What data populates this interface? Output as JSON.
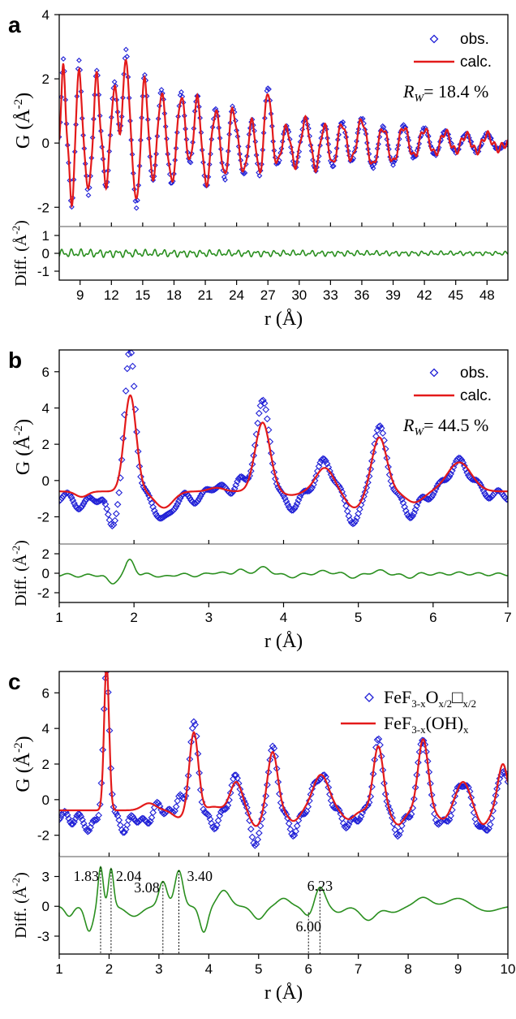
{
  "chart_data": [
    {
      "type": "line",
      "panel_label": "a",
      "xlabel_base": "r (Å)",
      "ylabel_main": "G (Å⁻²)",
      "ylabel_main_parts": {
        "prefix": "G (Å",
        "sup": "-2",
        "suffix": ")"
      },
      "ylabel_diff_parts": {
        "prefix": "Diff. (Å",
        "sup": "-2",
        "suffix": ")"
      },
      "xlim": [
        7,
        50
      ],
      "xticks": [
        9,
        12,
        15,
        18,
        21,
        24,
        27,
        30,
        33,
        36,
        39,
        42,
        45,
        48
      ],
      "ylim_main": [
        -2.6,
        4
      ],
      "yticks_main": [
        -2,
        0,
        2,
        4
      ],
      "ylim_diff": [
        -1.5,
        1.5
      ],
      "yticks_diff": [
        -1,
        0,
        1
      ],
      "series": [
        {
          "name": "obs.",
          "marker": "diamond",
          "color": "#1f1fd6"
        },
        {
          "name": "calc.",
          "marker": "line",
          "color": "#e31a1a"
        }
      ],
      "diff_color": "#2a8f1f",
      "rw_label": {
        "symbol": "R",
        "sub": "W",
        "text": "= 18.4 %"
      },
      "peaks": [
        [
          7.4,
          2.6,
          0.18
        ],
        [
          8.2,
          -2.0,
          0.2
        ],
        [
          8.9,
          2.6,
          0.2
        ],
        [
          9.8,
          -1.6,
          0.22
        ],
        [
          10.6,
          2.3,
          0.22
        ],
        [
          11.5,
          -1.4,
          0.22
        ],
        [
          12.3,
          1.9,
          0.25
        ],
        [
          13.4,
          2.9,
          0.25
        ],
        [
          14.4,
          -2.0,
          0.25
        ],
        [
          15.2,
          2.2,
          0.25
        ],
        [
          16.0,
          -1.2,
          0.3
        ],
        [
          16.8,
          1.7,
          0.3
        ],
        [
          17.8,
          -1.3,
          0.3
        ],
        [
          18.7,
          1.6,
          0.3
        ],
        [
          19.6,
          -0.8,
          0.3
        ],
        [
          20.2,
          1.6,
          0.3
        ],
        [
          21.1,
          -1.4,
          0.3
        ],
        [
          22.0,
          1.1,
          0.3
        ],
        [
          22.9,
          -1.2,
          0.3
        ],
        [
          23.6,
          1.2,
          0.3
        ],
        [
          24.7,
          -1.0,
          0.3
        ],
        [
          25.5,
          0.8,
          0.3
        ],
        [
          26.2,
          -1.1,
          0.3
        ],
        [
          27.0,
          1.8,
          0.3
        ],
        [
          27.9,
          -0.7,
          0.35
        ],
        [
          28.8,
          0.6,
          0.35
        ],
        [
          29.6,
          -0.8,
          0.35
        ],
        [
          30.6,
          0.8,
          0.35
        ],
        [
          31.6,
          -0.9,
          0.35
        ],
        [
          32.4,
          0.7,
          0.35
        ],
        [
          33.2,
          -0.8,
          0.35
        ],
        [
          34.1,
          0.7,
          0.35
        ],
        [
          35.0,
          -0.6,
          0.35
        ],
        [
          36.0,
          0.8,
          0.35
        ],
        [
          37.1,
          -0.8,
          0.4
        ],
        [
          38.0,
          0.6,
          0.4
        ],
        [
          39.0,
          -0.7,
          0.4
        ],
        [
          40.0,
          0.6,
          0.4
        ],
        [
          41.0,
          -0.5,
          0.4
        ],
        [
          42.0,
          0.5,
          0.4
        ],
        [
          43.0,
          -0.4,
          0.4
        ],
        [
          44.0,
          0.4,
          0.4
        ],
        [
          45.0,
          -0.3,
          0.4
        ],
        [
          46.0,
          0.3,
          0.4
        ],
        [
          47.0,
          -0.3,
          0.4
        ],
        [
          48.0,
          0.3,
          0.4
        ],
        [
          49.0,
          -0.2,
          0.4
        ]
      ],
      "diff_amplitude": 0.25
    },
    {
      "type": "line",
      "panel_label": "b",
      "xlabel_base": "r (Å)",
      "ylabel_main_parts": {
        "prefix": "G (Å",
        "sup": "-2",
        "suffix": ")"
      },
      "ylabel_diff_parts": {
        "prefix": "Diff. (Å",
        "sup": "-2",
        "suffix": ")"
      },
      "xlim": [
        1,
        7
      ],
      "xticks": [
        1,
        2,
        3,
        4,
        5,
        6,
        7
      ],
      "ylim_main": [
        -3.5,
        7.2
      ],
      "yticks_main": [
        -2,
        0,
        2,
        4,
        6
      ],
      "ylim_diff": [
        -3,
        3
      ],
      "yticks_diff": [
        -2,
        0,
        2
      ],
      "series": [
        {
          "name": "obs.",
          "marker": "diamond",
          "color": "#1f1fd6"
        },
        {
          "name": "calc.",
          "marker": "line",
          "color": "#e31a1a"
        }
      ],
      "diff_color": "#2a8f1f",
      "rw_label": {
        "symbol": "R",
        "sub": "W",
        "text": "= 44.5 %"
      },
      "obs_peaks": [
        [
          1.3,
          -0.5,
          0.08
        ],
        [
          1.7,
          -1.6,
          0.06
        ],
        [
          1.95,
          8.0,
          0.07
        ],
        [
          2.4,
          -1.4,
          0.1
        ],
        [
          2.8,
          -0.2,
          0.1
        ],
        [
          3.1,
          0.6,
          0.08
        ],
        [
          3.4,
          0.9,
          0.06
        ],
        [
          3.72,
          5.0,
          0.1
        ],
        [
          4.1,
          -0.6,
          0.1
        ],
        [
          4.55,
          1.8,
          0.12
        ],
        [
          4.95,
          -1.4,
          0.1
        ],
        [
          5.28,
          3.6,
          0.1
        ],
        [
          5.7,
          -1.0,
          0.1
        ],
        [
          6.35,
          1.8,
          0.16
        ]
      ],
      "calc_peaks": [
        [
          1.3,
          -0.3,
          0.08
        ],
        [
          1.95,
          5.3,
          0.08
        ],
        [
          2.4,
          -0.9,
          0.12
        ],
        [
          3.1,
          0.2,
          0.1
        ],
        [
          3.72,
          3.8,
          0.1
        ],
        [
          4.1,
          -0.2,
          0.12
        ],
        [
          4.55,
          1.3,
          0.12
        ],
        [
          4.95,
          -0.9,
          0.12
        ],
        [
          5.28,
          3.0,
          0.1
        ],
        [
          5.75,
          -0.6,
          0.12
        ],
        [
          6.35,
          1.6,
          0.16
        ]
      ],
      "obs_offset": -0.9,
      "calc_offset": -0.6
    },
    {
      "type": "line",
      "panel_label": "c",
      "xlabel_base": "r (Å)",
      "ylabel_main_parts": {
        "prefix": "G (Å",
        "sup": "-2",
        "suffix": ")"
      },
      "ylabel_diff_parts": {
        "prefix": "Diff. (Å",
        "sup": "-2",
        "suffix": ")"
      },
      "xlim": [
        1,
        10
      ],
      "xticks": [
        1,
        2,
        3,
        4,
        5,
        6,
        7,
        8,
        9,
        10
      ],
      "ylim_main": [
        -3.2,
        7.2
      ],
      "yticks_main": [
        -2,
        0,
        2,
        4,
        6
      ],
      "ylim_diff": [
        -4.8,
        5
      ],
      "yticks_diff": [
        -3,
        0,
        3
      ],
      "series": [
        {
          "name": "FeF3-xOx/2□x/2",
          "name_parts": {
            "a": "FeF",
            "s1": "3-x",
            "b": "O",
            "s2": "x/2",
            "c": "□",
            "s3": "x/2"
          },
          "marker": "diamond",
          "color": "#1f1fd6"
        },
        {
          "name": "FeF3-x(OH)x",
          "name_parts": {
            "a": "FeF",
            "s1": "3-x",
            "b": "(OH)",
            "s2": "x"
          },
          "marker": "line",
          "color": "#e31a1a"
        }
      ],
      "diff_color": "#2a8f1f",
      "annotations": [
        {
          "text": "1.83",
          "x": 1.83
        },
        {
          "text": "2.04",
          "x": 2.04
        },
        {
          "text": "3.08",
          "x": 3.08
        },
        {
          "text": "3.40",
          "x": 3.4
        },
        {
          "text": "6.00",
          "x": 6.0
        },
        {
          "text": "6.23",
          "x": 6.23
        }
      ],
      "obs_peaks": [
        [
          1.3,
          -0.3,
          0.07
        ],
        [
          1.6,
          -1.0,
          0.06
        ],
        [
          1.95,
          8.0,
          0.06
        ],
        [
          2.3,
          -0.8,
          0.1
        ],
        [
          2.7,
          -0.5,
          0.1
        ],
        [
          3.0,
          0.5,
          0.08
        ],
        [
          3.4,
          1.0,
          0.06
        ],
        [
          3.7,
          5.0,
          0.09
        ],
        [
          4.1,
          -0.6,
          0.1
        ],
        [
          4.55,
          2.0,
          0.12
        ],
        [
          4.95,
          -1.6,
          0.1
        ],
        [
          5.28,
          3.6,
          0.1
        ],
        [
          5.7,
          -1.0,
          0.1
        ],
        [
          6.25,
          2.2,
          0.16
        ],
        [
          6.8,
          -0.6,
          0.12
        ],
        [
          7.4,
          4.0,
          0.1
        ],
        [
          7.8,
          -1.0,
          0.1
        ],
        [
          8.3,
          4.4,
          0.1
        ],
        [
          8.7,
          -0.6,
          0.12
        ],
        [
          9.1,
          1.8,
          0.14
        ],
        [
          9.5,
          -1.0,
          0.12
        ],
        [
          9.9,
          2.6,
          0.1
        ]
      ],
      "calc_peaks": [
        [
          1.95,
          8.2,
          0.05
        ],
        [
          2.8,
          0.4,
          0.14
        ],
        [
          3.4,
          -0.4,
          0.12
        ],
        [
          3.7,
          4.4,
          0.09
        ],
        [
          4.1,
          0.2,
          0.14
        ],
        [
          4.55,
          1.6,
          0.12
        ],
        [
          4.95,
          -0.9,
          0.12
        ],
        [
          5.28,
          3.3,
          0.1
        ],
        [
          5.7,
          -0.6,
          0.12
        ],
        [
          6.25,
          2.0,
          0.16
        ],
        [
          6.8,
          -0.5,
          0.12
        ],
        [
          7.4,
          3.6,
          0.1
        ],
        [
          7.8,
          -0.8,
          0.12
        ],
        [
          8.3,
          4.0,
          0.1
        ],
        [
          8.7,
          -0.5,
          0.12
        ],
        [
          9.1,
          1.6,
          0.14
        ],
        [
          9.5,
          -0.8,
          0.12
        ],
        [
          9.9,
          2.6,
          0.1
        ]
      ],
      "obs_offset": -0.9,
      "calc_offset": -0.6,
      "diff_peaks": [
        [
          1.2,
          -1.0,
          0.08
        ],
        [
          1.6,
          -2.5,
          0.08
        ],
        [
          1.83,
          4.0,
          0.05
        ],
        [
          2.04,
          3.8,
          0.05
        ],
        [
          2.5,
          -1.0,
          0.15
        ],
        [
          3.08,
          2.5,
          0.08
        ],
        [
          3.4,
          3.6,
          0.08
        ],
        [
          3.9,
          -2.6,
          0.08
        ],
        [
          4.3,
          1.6,
          0.12
        ],
        [
          5.0,
          -1.3,
          0.12
        ],
        [
          5.5,
          0.8,
          0.12
        ],
        [
          6.0,
          -1.0,
          0.1
        ],
        [
          6.23,
          2.0,
          0.1
        ],
        [
          6.6,
          -0.6,
          0.12
        ],
        [
          7.2,
          -1.4,
          0.15
        ],
        [
          7.7,
          -0.6,
          0.15
        ],
        [
          8.3,
          0.9,
          0.15
        ],
        [
          9.0,
          0.8,
          0.2
        ],
        [
          9.6,
          -0.5,
          0.2
        ]
      ]
    }
  ]
}
